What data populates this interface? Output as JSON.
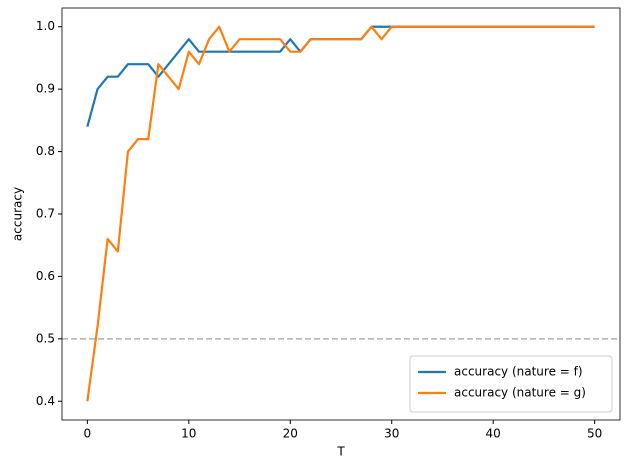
{
  "chart_data": {
    "type": "line",
    "x_label": "T",
    "y_label": "accuracy",
    "x": [
      0,
      1,
      2,
      3,
      4,
      5,
      6,
      7,
      8,
      9,
      10,
      11,
      12,
      13,
      14,
      15,
      16,
      17,
      18,
      19,
      20,
      21,
      22,
      23,
      24,
      25,
      26,
      27,
      28,
      29,
      30,
      31,
      32,
      33,
      34,
      35,
      36,
      37,
      38,
      39,
      40,
      41,
      42,
      43,
      44,
      45,
      46,
      47,
      48,
      49,
      50
    ],
    "series": [
      {
        "name": "accuracy (nature = f)",
        "color": "#1f77b4",
        "values": [
          0.84,
          0.9,
          0.92,
          0.92,
          0.94,
          0.94,
          0.94,
          0.92,
          0.94,
          0.96,
          0.98,
          0.96,
          0.96,
          0.96,
          0.96,
          0.96,
          0.96,
          0.96,
          0.96,
          0.96,
          0.98,
          0.96,
          0.98,
          0.98,
          0.98,
          0.98,
          0.98,
          0.98,
          1.0,
          1.0,
          1.0,
          1.0,
          1.0,
          1.0,
          1.0,
          1.0,
          1.0,
          1.0,
          1.0,
          1.0,
          1.0,
          1.0,
          1.0,
          1.0,
          1.0,
          1.0,
          1.0,
          1.0,
          1.0,
          1.0,
          1.0
        ]
      },
      {
        "name": "accuracy (nature = g)",
        "color": "#ff7f0e",
        "values": [
          0.4,
          0.52,
          0.66,
          0.64,
          0.8,
          0.82,
          0.82,
          0.94,
          0.92,
          0.9,
          0.96,
          0.94,
          0.98,
          1.0,
          0.96,
          0.98,
          0.98,
          0.98,
          0.98,
          0.98,
          0.96,
          0.96,
          0.98,
          0.98,
          0.98,
          0.98,
          0.98,
          0.98,
          1.0,
          0.98,
          1.0,
          1.0,
          1.0,
          1.0,
          1.0,
          1.0,
          1.0,
          1.0,
          1.0,
          1.0,
          1.0,
          1.0,
          1.0,
          1.0,
          1.0,
          1.0,
          1.0,
          1.0,
          1.0,
          1.0,
          1.0
        ]
      }
    ],
    "xlim": [
      -2.5,
      52.5
    ],
    "ylim": [
      0.37,
      1.03
    ],
    "xticks": [
      0,
      10,
      20,
      30,
      40,
      50
    ],
    "yticks": [
      0.4,
      0.5,
      0.6,
      0.7,
      0.8,
      0.9,
      {
        "value": 1,
        "label": "1.0"
      }
    ],
    "hline": 0.5,
    "hline_color": "#b0b0b0",
    "legend": "lower right",
    "grid": false
  }
}
